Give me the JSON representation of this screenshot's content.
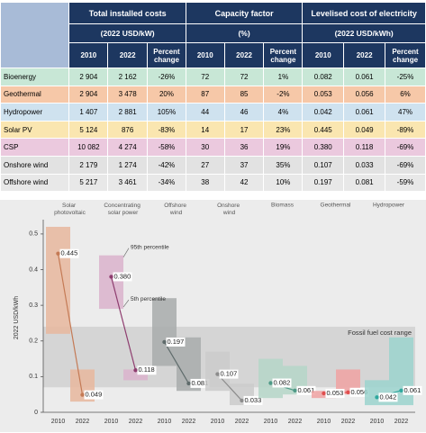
{
  "table": {
    "groups": [
      {
        "title": "Total installed costs",
        "unit": "(2022 USD/kW)"
      },
      {
        "title": "Capacity factor",
        "unit": "(%)"
      },
      {
        "title": "Levelised cost of electricity",
        "unit": "(2022 USD/kWh)"
      }
    ],
    "columns": [
      "2010",
      "2022",
      "Percent change"
    ],
    "rows": [
      [
        "Bioenergy",
        "2 904",
        "2 162",
        "-26%",
        "72",
        "72",
        "1%",
        "0.082",
        "0.061",
        "-25%"
      ],
      [
        "Geothermal",
        "2 904",
        "3 478",
        "20%",
        "87",
        "85",
        "-2%",
        "0.053",
        "0.056",
        "6%"
      ],
      [
        "Hydropower",
        "1 407",
        "2 881",
        "105%",
        "44",
        "46",
        "4%",
        "0.042",
        "0.061",
        "47%"
      ],
      [
        "Solar PV",
        "5 124",
        "876",
        "-83%",
        "14",
        "17",
        "23%",
        "0.445",
        "0.049",
        "-89%"
      ],
      [
        "CSP",
        "10 082",
        "4 274",
        "-58%",
        "30",
        "36",
        "19%",
        "0.380",
        "0.118",
        "-69%"
      ],
      [
        "Onshore wind",
        "2 179",
        "1 274",
        "-42%",
        "27",
        "37",
        "35%",
        "0.107",
        "0.033",
        "-69%"
      ],
      [
        "Offshore wind",
        "5 217",
        "3 461",
        "-34%",
        "38",
        "42",
        "10%",
        "0.197",
        "0.081",
        "-59%"
      ]
    ],
    "row_colors": [
      "#c8e7d6",
      "#f6c8a8",
      "#cfe2ef",
      "#fae6b0",
      "#ebc9de",
      "#e2e2e2",
      "#e8e8e8"
    ]
  },
  "chart_data": {
    "type": "range",
    "y_label": "2022 USD/kWh",
    "categories": [
      "2010",
      "2022"
    ],
    "ylim": [
      0,
      0.53
    ],
    "yticks": [
      0,
      0.1,
      0.2,
      0.3,
      0.4,
      0.5
    ],
    "fossil_range": [
      0.07,
      0.24
    ],
    "fossil_label": "Fossil fuel cost range",
    "annotations": [
      "95th percentile",
      "5th percentile"
    ],
    "series": [
      {
        "name": "Solar photovoltaic",
        "color": "#c47a55",
        "box_color": "#e7b79e",
        "values": [
          0.445,
          0.049
        ],
        "value_labels": [
          "0.445",
          "0.049"
        ],
        "ranges": [
          [
            0.22,
            0.52
          ],
          [
            0.03,
            0.12
          ]
        ]
      },
      {
        "name": "Concentrating solar power",
        "color": "#8e3d6f",
        "box_color": "#dab3cd",
        "values": [
          0.38,
          0.118
        ],
        "value_labels": [
          "0.380",
          "0.118"
        ],
        "ranges": [
          [
            0.29,
            0.44
          ],
          [
            0.09,
            0.12
          ]
        ]
      },
      {
        "name": "Offshore wind",
        "color": "#5f6b6b",
        "box_color": "#a8acac",
        "values": [
          0.197,
          0.081
        ],
        "value_labels": [
          "0.197",
          "0.081"
        ],
        "ranges": [
          [
            0.13,
            0.32
          ],
          [
            0.06,
            0.21
          ]
        ]
      },
      {
        "name": "Onshore wind",
        "color": "#8c8c8c",
        "box_color": "#cbcbcb",
        "values": [
          0.107,
          0.033
        ],
        "value_labels": [
          "0.107",
          "0.033"
        ],
        "ranges": [
          [
            0.06,
            0.17
          ],
          [
            0.02,
            0.08
          ]
        ]
      },
      {
        "name": "Biomass",
        "color": "#4f9a87",
        "box_color": "#b5d6c8",
        "values": [
          0.082,
          0.061
        ],
        "value_labels": [
          "0.082",
          "0.061"
        ],
        "ranges": [
          [
            0.04,
            0.15
          ],
          [
            0.05,
            0.13
          ]
        ]
      },
      {
        "name": "Geothermal",
        "color": "#e04e4e",
        "box_color": "#f0a2a2",
        "values": [
          0.053,
          0.056
        ],
        "value_labels": [
          "0.053",
          "0.056"
        ],
        "ranges": [
          [
            0.04,
            0.06
          ],
          [
            0.05,
            0.12
          ]
        ]
      },
      {
        "name": "Hydropower",
        "color": "#2fa89e",
        "box_color": "#9bd4ce",
        "values": [
          0.042,
          0.061
        ],
        "value_labels": [
          "0.042",
          "0.061"
        ],
        "ranges": [
          [
            0.02,
            0.09
          ],
          [
            0.02,
            0.21
          ]
        ]
      }
    ]
  }
}
